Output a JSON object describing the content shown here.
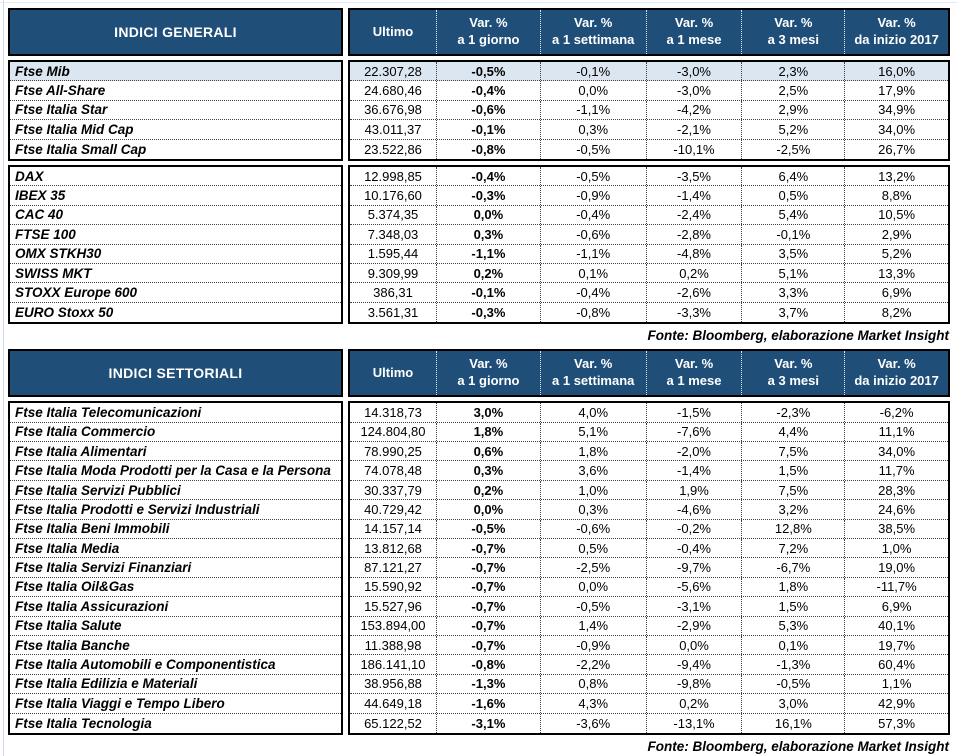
{
  "theme": {
    "header_bg": "#1F4E79",
    "header_text": "#FFFFFF",
    "highlight_row_bg": "#DCE6F1",
    "border_color": "#000000"
  },
  "columns": [
    {
      "top": "Ultimo",
      "bottom": ""
    },
    {
      "top": "Var. %",
      "bottom": "a 1 giorno"
    },
    {
      "top": "Var. %",
      "bottom": "a 1 settimana"
    },
    {
      "top": "Var. %",
      "bottom": "a 1 mese"
    },
    {
      "top": "Var. %",
      "bottom": "a 3 mesi"
    },
    {
      "top": "Var. %",
      "bottom": "da inizio 2017"
    }
  ],
  "tables": [
    {
      "title": "INDICI GENERALI",
      "source": "Fonte: Bloomberg, elaborazione Market Insight",
      "groups": [
        {
          "rows": [
            {
              "name": "Ftse Mib",
              "highlight": true,
              "values": [
                "22.307,28",
                "-0,5%",
                "-0,1%",
                "-3,0%",
                "2,3%",
                "16,0%"
              ]
            },
            {
              "name": "Ftse All-Share",
              "highlight": false,
              "values": [
                "24.680,46",
                "-0,4%",
                "0,0%",
                "-3,0%",
                "2,5%",
                "17,9%"
              ]
            },
            {
              "name": "Ftse Italia Star",
              "highlight": false,
              "values": [
                "36.676,98",
                "-0,6%",
                "-1,1%",
                "-4,2%",
                "2,9%",
                "34,9%"
              ]
            },
            {
              "name": "Ftse Italia Mid Cap",
              "highlight": false,
              "values": [
                "43.011,37",
                "-0,1%",
                "0,3%",
                "-2,1%",
                "5,2%",
                "34,0%"
              ]
            },
            {
              "name": "Ftse Italia Small Cap",
              "highlight": false,
              "values": [
                "23.522,86",
                "-0,8%",
                "-0,5%",
                "-10,1%",
                "-2,5%",
                "26,7%"
              ]
            }
          ]
        },
        {
          "rows": [
            {
              "name": "DAX",
              "highlight": false,
              "values": [
                "12.998,85",
                "-0,4%",
                "-0,5%",
                "-3,5%",
                "6,4%",
                "13,2%"
              ]
            },
            {
              "name": "IBEX 35",
              "highlight": false,
              "values": [
                "10.176,60",
                "-0,3%",
                "-0,9%",
                "-1,4%",
                "0,5%",
                "8,8%"
              ]
            },
            {
              "name": "CAC 40",
              "highlight": false,
              "values": [
                "5.374,35",
                "0,0%",
                "-0,4%",
                "-2,4%",
                "5,4%",
                "10,5%"
              ]
            },
            {
              "name": "FTSE 100",
              "highlight": false,
              "values": [
                "7.348,03",
                "0,3%",
                "-0,6%",
                "-2,8%",
                "-0,1%",
                "2,9%"
              ]
            },
            {
              "name": "OMX STKH30",
              "highlight": false,
              "values": [
                "1.595,44",
                "-1,1%",
                "-1,1%",
                "-4,8%",
                "3,5%",
                "5,2%"
              ]
            },
            {
              "name": "SWISS MKT",
              "highlight": false,
              "values": [
                "9.309,99",
                "0,2%",
                "0,1%",
                "0,2%",
                "5,1%",
                "13,3%"
              ]
            },
            {
              "name": "STOXX Europe 600",
              "highlight": false,
              "values": [
                "386,31",
                "-0,1%",
                "-0,4%",
                "-2,6%",
                "3,3%",
                "6,9%"
              ]
            },
            {
              "name": "EURO Stoxx 50",
              "highlight": false,
              "values": [
                "3.561,31",
                "-0,3%",
                "-0,8%",
                "-3,3%",
                "3,7%",
                "8,2%"
              ]
            }
          ]
        }
      ]
    },
    {
      "title": "INDICI SETTORIALI",
      "source": "Fonte: Bloomberg, elaborazione Market Insight",
      "groups": [
        {
          "rows": [
            {
              "name": "Ftse Italia Telecomunicazioni",
              "highlight": false,
              "values": [
                "14.318,73",
                "3,0%",
                "4,0%",
                "-1,5%",
                "-2,3%",
                "-6,2%"
              ]
            },
            {
              "name": "Ftse Italia Commercio",
              "highlight": false,
              "values": [
                "124.804,80",
                "1,8%",
                "5,1%",
                "-7,6%",
                "4,4%",
                "11,1%"
              ]
            },
            {
              "name": "Ftse Italia Alimentari",
              "highlight": false,
              "values": [
                "78.990,25",
                "0,6%",
                "1,8%",
                "-2,0%",
                "7,5%",
                "34,0%"
              ]
            },
            {
              "name": "Ftse Italia Moda Prodotti per la Casa e la Persona",
              "highlight": false,
              "values": [
                "74.078,48",
                "0,3%",
                "3,6%",
                "-1,4%",
                "1,5%",
                "11,7%"
              ]
            },
            {
              "name": "Ftse Italia Servizi Pubblici",
              "highlight": false,
              "values": [
                "30.337,79",
                "0,2%",
                "1,0%",
                "1,9%",
                "7,5%",
                "28,3%"
              ]
            },
            {
              "name": "Ftse Italia Prodotti e Servizi Industriali",
              "highlight": false,
              "values": [
                "40.729,42",
                "0,0%",
                "0,3%",
                "-4,6%",
                "3,2%",
                "24,6%"
              ]
            },
            {
              "name": "Ftse Italia Beni Immobili",
              "highlight": false,
              "values": [
                "14.157,14",
                "-0,5%",
                "-0,6%",
                "-0,2%",
                "12,8%",
                "38,5%"
              ]
            },
            {
              "name": "Ftse Italia Media",
              "highlight": false,
              "values": [
                "13.812,68",
                "-0,7%",
                "0,5%",
                "-0,4%",
                "7,2%",
                "1,0%"
              ]
            },
            {
              "name": "Ftse Italia Servizi Finanziari",
              "highlight": false,
              "values": [
                "87.121,27",
                "-0,7%",
                "-2,5%",
                "-9,7%",
                "-6,7%",
                "19,0%"
              ]
            },
            {
              "name": "Ftse Italia Oil&Gas",
              "highlight": false,
              "values": [
                "15.590,92",
                "-0,7%",
                "0,0%",
                "-5,6%",
                "1,8%",
                "-11,7%"
              ]
            },
            {
              "name": "Ftse Italia Assicurazioni",
              "highlight": false,
              "values": [
                "15.527,96",
                "-0,7%",
                "-0,5%",
                "-3,1%",
                "1,5%",
                "6,9%"
              ]
            },
            {
              "name": "Ftse Italia Salute",
              "highlight": false,
              "values": [
                "153.894,00",
                "-0,7%",
                "1,4%",
                "-2,9%",
                "5,3%",
                "40,1%"
              ]
            },
            {
              "name": "Ftse Italia Banche",
              "highlight": false,
              "values": [
                "11.388,98",
                "-0,7%",
                "-0,9%",
                "0,0%",
                "0,1%",
                "19,7%"
              ]
            },
            {
              "name": "Ftse Italia Automobili e Componentistica",
              "highlight": false,
              "values": [
                "186.141,10",
                "-0,8%",
                "-2,2%",
                "-9,4%",
                "-1,3%",
                "60,4%"
              ]
            },
            {
              "name": "Ftse Italia Edilizia e Materiali",
              "highlight": false,
              "values": [
                "38.956,88",
                "-1,3%",
                "0,8%",
                "-9,8%",
                "-0,5%",
                "1,1%"
              ]
            },
            {
              "name": "Ftse Italia Viaggi e Tempo Libero",
              "highlight": false,
              "values": [
                "44.649,18",
                "-1,6%",
                "4,3%",
                "0,2%",
                "3,0%",
                "42,9%"
              ]
            },
            {
              "name": "Ftse Italia Tecnologia",
              "highlight": false,
              "values": [
                "65.122,52",
                "-3,1%",
                "-3,6%",
                "-13,1%",
                "16,1%",
                "57,3%"
              ]
            }
          ]
        }
      ]
    }
  ]
}
